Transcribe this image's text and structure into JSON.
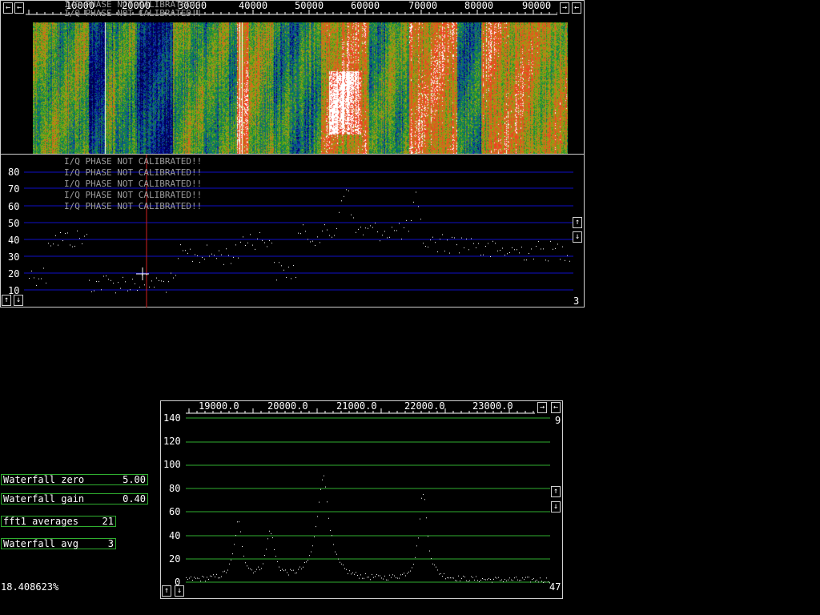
{
  "main_spectrum": {
    "freq_labels": [
      "10000",
      "20000",
      "30000",
      "40000",
      "50000",
      "60000",
      "70000",
      "80000",
      "90000"
    ],
    "y_labels": [
      "80",
      "70",
      "60",
      "50",
      "40",
      "30",
      "20",
      "10"
    ],
    "warning_text": "I/Q PHASE NOT CALIBRATED!!",
    "warning_count": 7,
    "avg_count": "3",
    "colors": {
      "grid": "#1010c8",
      "cursor": "#d02020"
    }
  },
  "zoom_spectrum": {
    "freq_labels": [
      "19000.0",
      "20000.0",
      "21000.0",
      "22000.0",
      "23000.0"
    ],
    "y_labels": [
      "140",
      "120",
      "100",
      "80",
      "60",
      "40",
      "20",
      "0"
    ],
    "top_right_value": "9",
    "bottom_right_value": "47",
    "colors": {
      "grid": "#2fae2f"
    }
  },
  "params": [
    {
      "label": "Waterfall zero",
      "value": "5.00"
    },
    {
      "label": "Waterfall gain",
      "value": "0.40"
    },
    {
      "label": "fft1 averages",
      "value": "21"
    },
    {
      "label": "Waterfall avg",
      "value": "3"
    }
  ],
  "cpu_load": "18.408623%",
  "icons": {
    "left_arrow": "←",
    "right_arrow": "→",
    "up_arrow": "↑",
    "down_arrow": "↓"
  }
}
